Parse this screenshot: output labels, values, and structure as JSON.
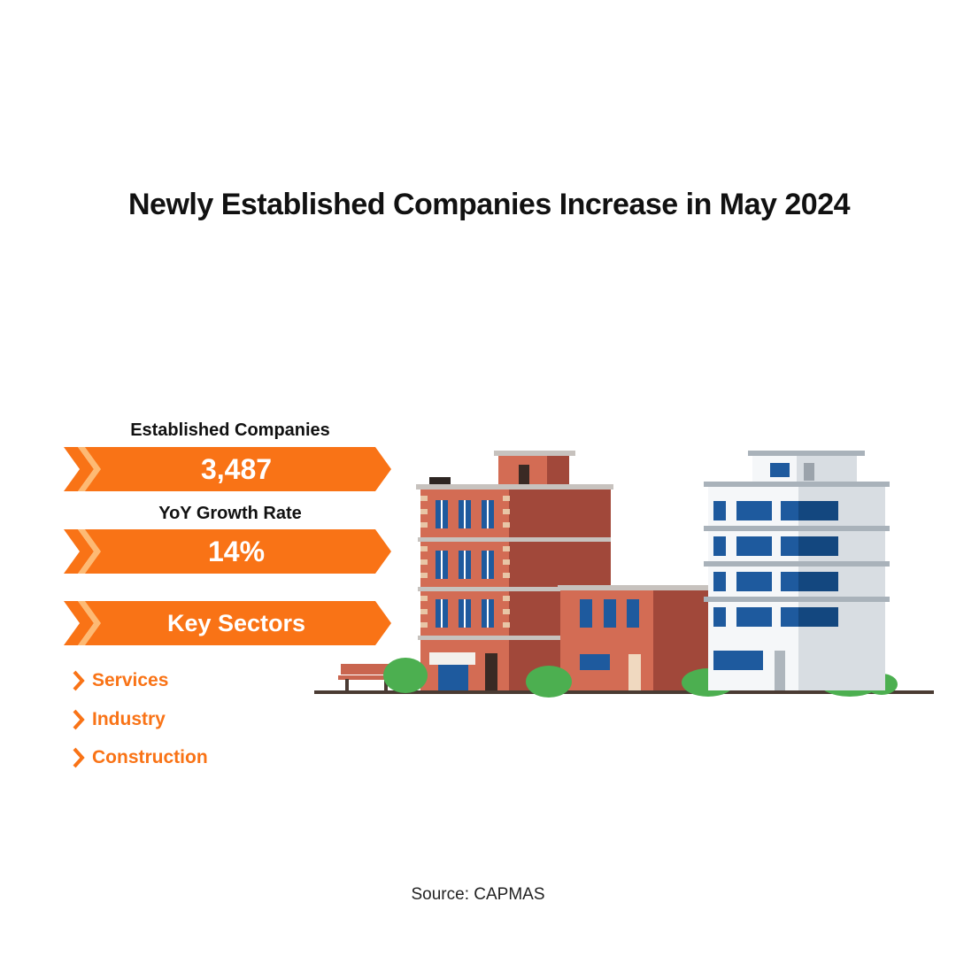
{
  "title": "Newly Established Companies Increase in May 2024",
  "colors": {
    "accent": "#F97316",
    "banner_light": "#FDBA74",
    "text": "#111111"
  },
  "stats": [
    {
      "label": "Established Companies",
      "value": "3,487"
    },
    {
      "label": "YoY Growth Rate",
      "value": "14%"
    }
  ],
  "sectors": {
    "heading": "Key Sectors",
    "items": [
      "Services",
      "Industry",
      "Construction"
    ]
  },
  "source": "Source: CAPMAS",
  "icons": [
    "chevron-right-icon",
    "buildings-illustration"
  ]
}
